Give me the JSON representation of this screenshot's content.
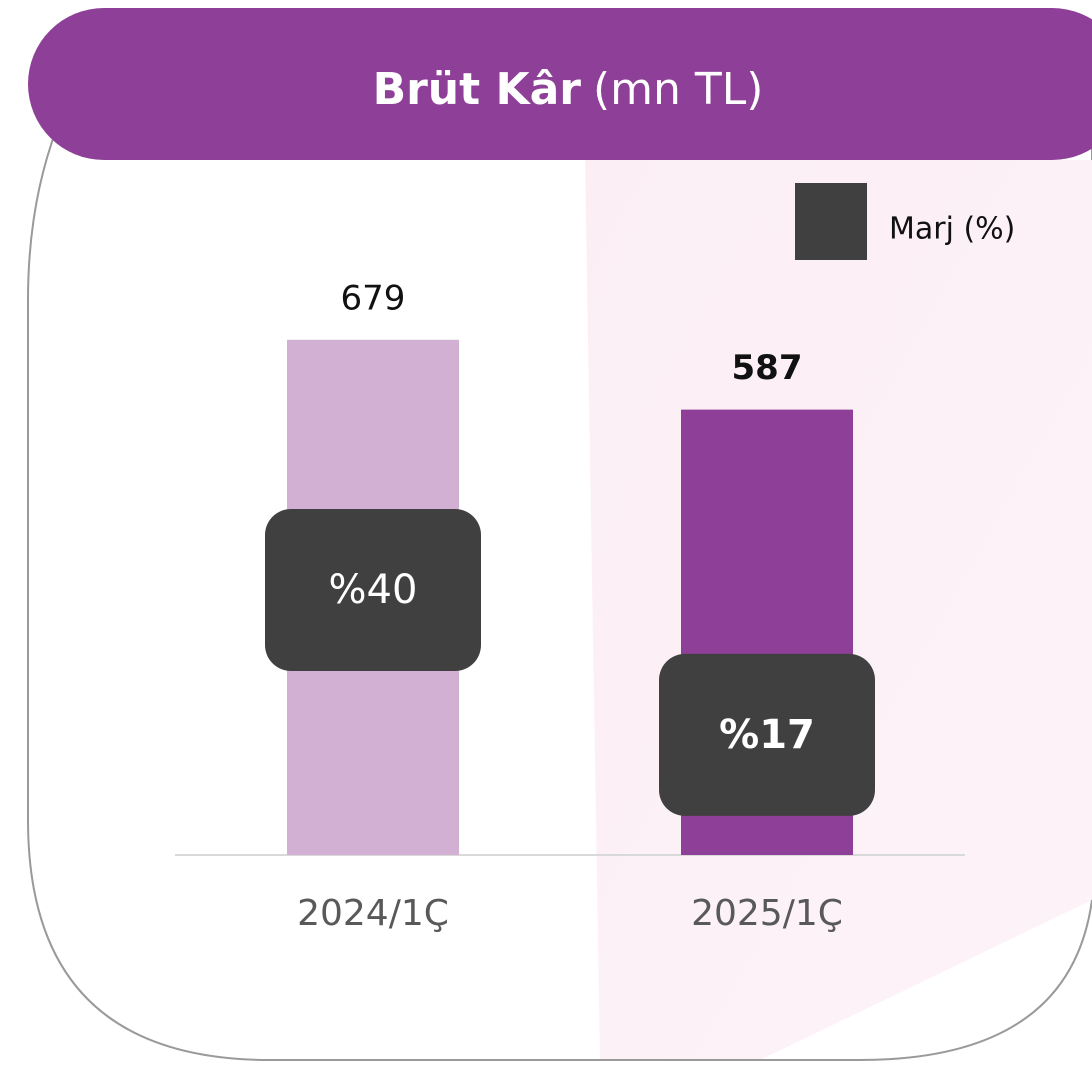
{
  "chart_data": {
    "type": "bar",
    "title": "Brüt Kâr",
    "title_unit": "(mn TL)",
    "categories": [
      "2024/1Ç",
      "2025/1Ç"
    ],
    "values": [
      679,
      587
    ],
    "colors": [
      "#d2b0d4",
      "#8e3f97"
    ],
    "ylim": [
      0,
      800
    ],
    "series": [
      {
        "name": "Marj (%)",
        "color": "#404040",
        "values": [
          40,
          17
        ],
        "value_labels": [
          "%40",
          "%17"
        ],
        "axis": "y2"
      }
    ],
    "y2lim": [
      0,
      100
    ]
  }
}
